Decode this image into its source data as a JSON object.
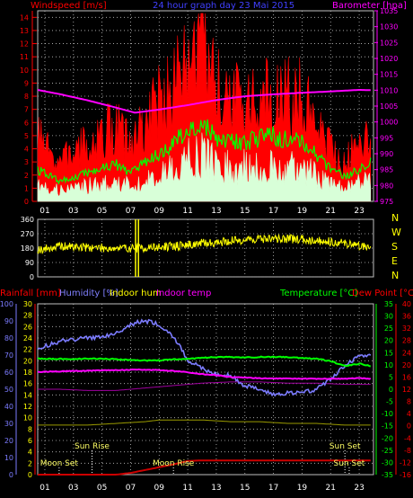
{
  "title": "24 hour graph day  23 Mai 2015",
  "colors": {
    "background": "#000000",
    "grid": "#bfbfbf",
    "wind_speed": "#ff0000",
    "wind_avg": "#00ff00",
    "wind_lull": "#d8ffd8",
    "barometer": "#ff00ff",
    "direction": "#ffff00",
    "humidity": "#7c7cff",
    "indoor_hum": "#ffff00",
    "indoor_temp": "#ff00ff",
    "temperature": "#00ff00",
    "dew_point": "#ff0000",
    "rainfall": "#cc0000",
    "indoor_hum_line": "#9a9a00",
    "indoor_temp_line": "#a000a0",
    "moon": "#ffff66",
    "sun": "#ffff66"
  },
  "x_ticks": [
    "01",
    "03",
    "05",
    "07",
    "09",
    "11",
    "13",
    "15",
    "17",
    "19",
    "21",
    "23"
  ],
  "panel1": {
    "left_label": "Windspeed [m/s]",
    "right_label": "Barometer [hpa]",
    "wind_ticks": [
      "0",
      "1",
      "2",
      "3",
      "4",
      "5",
      "6",
      "7",
      "8",
      "9",
      "10",
      "11",
      "12",
      "13",
      "14"
    ],
    "baro_ticks": [
      "975",
      "980",
      "985",
      "990",
      "995",
      "1000",
      "1005",
      "1010",
      "1015",
      "1020",
      "1025",
      "1030",
      "1035"
    ]
  },
  "panel2": {
    "ticks": [
      "0",
      "90",
      "180",
      "270",
      "360"
    ],
    "compass": [
      "N",
      "W",
      "S",
      "E",
      "N"
    ]
  },
  "panel3": {
    "label_rain": "Rainfall [mm]",
    "label_hum": "Humidity [%]",
    "label_inhum": "Indoor hum",
    "label_intemp": "Indoor temp",
    "label_temp": "Temperature [°C]",
    "label_dew": "Dew Point [°C]",
    "hum_ticks": [
      "0",
      "10",
      "20",
      "30",
      "40",
      "50",
      "60",
      "70",
      "80",
      "90",
      "100"
    ],
    "rain_ticks": [
      "0",
      "2",
      "4",
      "6",
      "8",
      "10",
      "12",
      "14",
      "16",
      "18",
      "20",
      "22",
      "24",
      "26",
      "28",
      "30"
    ],
    "temp_ticks": [
      "-35",
      "-30",
      "-25",
      "-20",
      "-15",
      "-10",
      "-5",
      "0",
      "5",
      "10",
      "15",
      "20",
      "25",
      "30",
      "35"
    ],
    "dew_ticks": [
      "-16",
      "-12",
      "-8",
      "-4",
      "0",
      "4",
      "8",
      "12",
      "16",
      "20",
      "24",
      "28",
      "32",
      "36",
      "40"
    ],
    "annotations": [
      {
        "text": "Moon Set",
        "hour": 2.0,
        "row": "low"
      },
      {
        "text": "Sun Rise",
        "hour": 4.3,
        "row": "high"
      },
      {
        "text": "Moon Rise",
        "hour": 10.0,
        "row": "low"
      },
      {
        "text": "Sun Set",
        "hour": 22.0,
        "row": "high"
      },
      {
        "text": "Sun Set",
        "hour": 22.3,
        "row": "low"
      }
    ]
  },
  "chart_data": [
    {
      "type": "line",
      "title": "24 hour graph day  23 Mai 2015",
      "ylabel": "Windspeed [m/s]",
      "y2label": "Barometer [hpa]",
      "ylim": [
        0,
        14.5
      ],
      "y2lim": [
        975,
        1035
      ],
      "series": [
        {
          "name": "Windspeed [m/s]",
          "axis": "left",
          "kind": "gust",
          "x": [
            0,
            1,
            2,
            3,
            4,
            5,
            6,
            7,
            8,
            9,
            10,
            11,
            12,
            13,
            14,
            15,
            16,
            17,
            18,
            19,
            20,
            21,
            22,
            23,
            23.8
          ],
          "values": [
            6.3,
            4.3,
            3.2,
            4.0,
            4.6,
            5.5,
            6.2,
            4.4,
            6.3,
            8.2,
            9.1,
            11.3,
            12.6,
            9.0,
            8.6,
            7.8,
            8.3,
            8.8,
            8.5,
            8.5,
            6.5,
            4.3,
            3.3,
            4.8,
            5.2
          ]
        },
        {
          "name": "",
          "axis": "left",
          "kind": "avg",
          "x": [
            0,
            1,
            2,
            3,
            4,
            5,
            6,
            7,
            8,
            9,
            10,
            11,
            12,
            13,
            14,
            15,
            16,
            17,
            18,
            19,
            20,
            21,
            22,
            23,
            23.8
          ],
          "values": [
            2.5,
            2.2,
            1.5,
            1.8,
            2.2,
            2.5,
            2.8,
            2.2,
            3.0,
            3.6,
            4.4,
            5.6,
            6.0,
            4.8,
            4.6,
            4.5,
            4.8,
            5.0,
            4.6,
            4.6,
            3.6,
            2.4,
            1.9,
            2.5,
            3.0
          ]
        },
        {
          "name": "",
          "axis": "left",
          "kind": "lull",
          "x": [
            0,
            1,
            2,
            3,
            4,
            5,
            6,
            7,
            8,
            9,
            10,
            11,
            12,
            13,
            14,
            15,
            16,
            17,
            18,
            19,
            20,
            21,
            22,
            23,
            23.8
          ],
          "values": [
            1.3,
            1.2,
            0.9,
            1.0,
            1.2,
            1.4,
            1.5,
            1.2,
            1.6,
            2.0,
            2.5,
            3.3,
            3.8,
            2.8,
            2.6,
            2.7,
            2.8,
            3.0,
            2.6,
            2.6,
            2.1,
            1.3,
            1.0,
            1.4,
            1.7
          ]
        },
        {
          "name": "Barometer [hpa]",
          "axis": "right",
          "x": [
            0,
            2,
            4,
            6,
            7.3,
            9,
            11,
            13,
            15,
            17,
            19,
            21,
            23,
            23.8
          ],
          "values": [
            1010.5,
            1008.8,
            1006.8,
            1004.5,
            1002.9,
            1003.9,
            1005.3,
            1006.9,
            1008.1,
            1008.7,
            1009.2,
            1009.6,
            1010.1,
            1010.0
          ]
        }
      ]
    },
    {
      "type": "scatter",
      "ylabel": "",
      "ylim": [
        0,
        360
      ],
      "yticks": [
        0,
        90,
        180,
        270,
        360
      ],
      "series": [
        {
          "name": "",
          "x": [
            0,
            1,
            2,
            3,
            4,
            5,
            6,
            7,
            7.5,
            8,
            9,
            10,
            11,
            12,
            13,
            14,
            15,
            16,
            17,
            18,
            19,
            20,
            21,
            22,
            23,
            23.8
          ],
          "values": [
            170,
            175,
            190,
            188,
            185,
            182,
            178,
            180,
            180,
            182,
            185,
            192,
            200,
            210,
            215,
            225,
            232,
            238,
            240,
            238,
            235,
            228,
            220,
            210,
            195,
            185
          ]
        }
      ]
    },
    {
      "type": "line",
      "ylim_humidity": [
        0,
        100
      ],
      "ylim_rain": [
        0,
        30
      ],
      "ylim_temp": [
        -35,
        35
      ],
      "ylim_dew": [
        -16,
        40
      ],
      "series": [
        {
          "name": "Humidity [%]",
          "axis": "humidity",
          "x": [
            0,
            1,
            2,
            3,
            4,
            5,
            6,
            7,
            8,
            9,
            10,
            11,
            12,
            13,
            14,
            15,
            16,
            17,
            18,
            19,
            20,
            21,
            22,
            23,
            23.8
          ],
          "values": [
            70,
            75,
            78,
            79,
            80,
            81,
            83,
            88,
            90,
            88,
            81,
            67,
            62,
            59,
            58,
            52,
            50,
            47,
            48,
            48,
            50,
            56,
            64,
            69,
            70
          ]
        },
        {
          "name": "Indoor hum",
          "axis": "humidity",
          "x": [
            0,
            2,
            4,
            6,
            8,
            9,
            10,
            12,
            14,
            16,
            18,
            20,
            22,
            23.8
          ],
          "values": [
            29,
            29,
            29,
            30,
            31,
            32,
            32,
            32,
            31,
            31,
            30,
            30,
            29,
            29
          ]
        },
        {
          "name": "Indoor temp",
          "axis": "temp",
          "x": [
            0,
            2,
            4,
            6,
            8,
            10,
            12,
            14,
            16,
            18,
            20,
            22,
            23.8
          ],
          "values": [
            0,
            0,
            -0.5,
            -0.5,
            0.5,
            1.5,
            2.5,
            3,
            3,
            2.5,
            2.5,
            2,
            2
          ]
        },
        {
          "name": "Temperature [°C]",
          "axis": "temp",
          "x": [
            0,
            1,
            2,
            3,
            4,
            5,
            6,
            7,
            8,
            9,
            10,
            11,
            12,
            13,
            14,
            15,
            16,
            17,
            18,
            19,
            20,
            21,
            22,
            23,
            23.8
          ],
          "values": [
            12.5,
            12.5,
            12.4,
            12.4,
            12.5,
            12.5,
            12.3,
            12.0,
            11.8,
            11.8,
            12.2,
            12.5,
            12.8,
            13.2,
            13.2,
            13.0,
            13.2,
            13.2,
            13.2,
            12.8,
            12.5,
            11.5,
            9.5,
            10.5,
            9.5
          ]
        },
        {
          "name": "Dew Point [°C]",
          "axis": "temp",
          "x": [
            0,
            1,
            2,
            3,
            4,
            5,
            6,
            7,
            8,
            9,
            10,
            11,
            12,
            13,
            14,
            15,
            16,
            17,
            18,
            19,
            20,
            21,
            22,
            23,
            23.8
          ],
          "values": [
            7.0,
            7.2,
            7.3,
            7.5,
            7.6,
            7.8,
            7.8,
            8.0,
            8.0,
            7.8,
            7.5,
            7.0,
            6.2,
            5.8,
            5.0,
            4.8,
            4.5,
            4.5,
            4.3,
            4.3,
            4.3,
            4.3,
            4.3,
            4.5,
            4.3
          ]
        },
        {
          "name": "Rainfall [mm]",
          "axis": "rain",
          "x": [
            0,
            6,
            7,
            8,
            9,
            10,
            11,
            12,
            13,
            14,
            16,
            18,
            20,
            22,
            23.8
          ],
          "values": [
            0,
            0,
            0.3,
            0.8,
            1.3,
            1.8,
            2.4,
            2.5,
            2.5,
            2.5,
            2.5,
            2.5,
            2.5,
            2.5,
            2.5
          ]
        }
      ]
    }
  ]
}
